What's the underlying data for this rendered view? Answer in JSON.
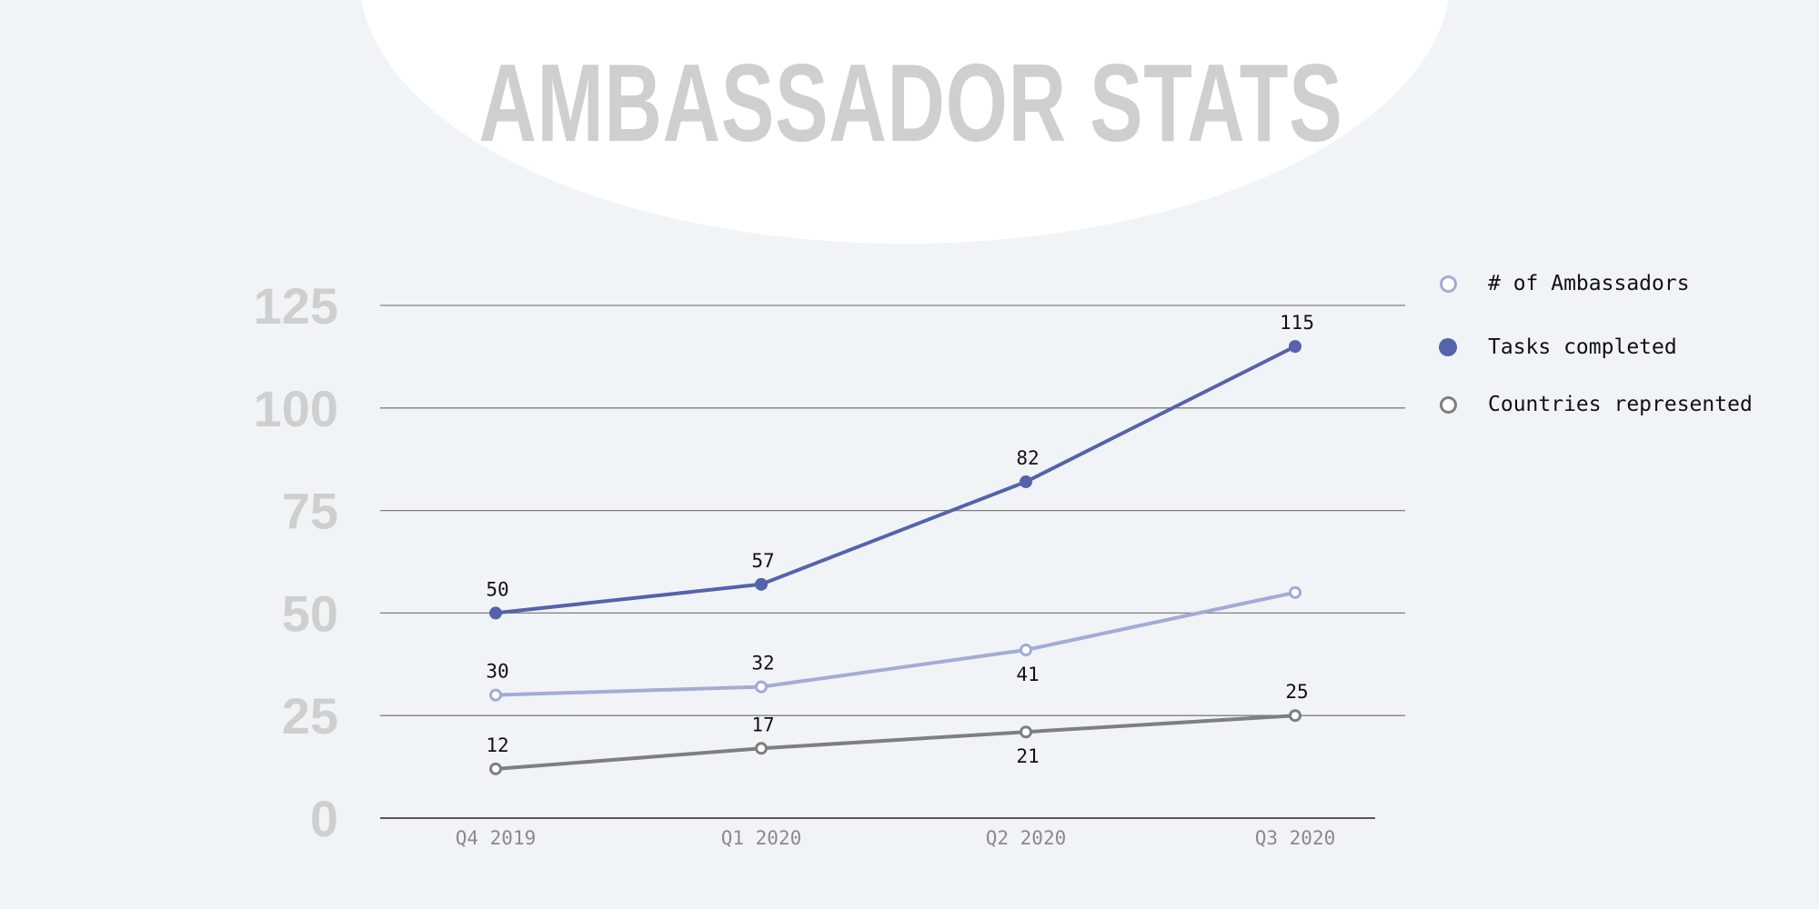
{
  "title": "AMBASSADOR STATS",
  "colors": {
    "background": "#f1f4f7",
    "blob": "#ffffff",
    "title": "#cfcfcf",
    "ambassadors": "#a3abd6",
    "tasks": "#5563ab",
    "countries": "#7f7f7f",
    "gridline": "#7f7f7f"
  },
  "legend": [
    {
      "label": "# of Ambassadors",
      "color": "#a3abd6",
      "marker": "hollow"
    },
    {
      "label": "Tasks completed",
      "color": "#5563ab",
      "marker": "filled"
    },
    {
      "label": "Countries represented",
      "color": "#7f7f7f",
      "marker": "hollow"
    }
  ],
  "chart_data": {
    "type": "line",
    "title": "AMBASSADOR STATS",
    "xlabel": "",
    "ylabel": "",
    "categories": [
      "Q4 2019",
      "Q1 2020",
      "Q2 2020",
      "Q3 2020"
    ],
    "y_ticks": [
      0,
      25,
      50,
      75,
      100,
      125
    ],
    "ylim": [
      0,
      125
    ],
    "grid": true,
    "legend_position": "right",
    "series": [
      {
        "name": "# of Ambassadors",
        "values": [
          30,
          32,
          41,
          55
        ],
        "data_labels": [
          "30",
          "32",
          "41",
          ""
        ],
        "color": "#a3abd6",
        "marker": "hollow"
      },
      {
        "name": "Tasks completed",
        "values": [
          50,
          57,
          82,
          115
        ],
        "data_labels": [
          "50",
          "57",
          "82",
          "115"
        ],
        "color": "#5563ab",
        "marker": "filled"
      },
      {
        "name": "Countries represented",
        "values": [
          12,
          17,
          21,
          25
        ],
        "data_labels": [
          "12",
          "17",
          "21",
          "25"
        ],
        "color": "#7f7f7f",
        "marker": "hollow"
      }
    ]
  }
}
